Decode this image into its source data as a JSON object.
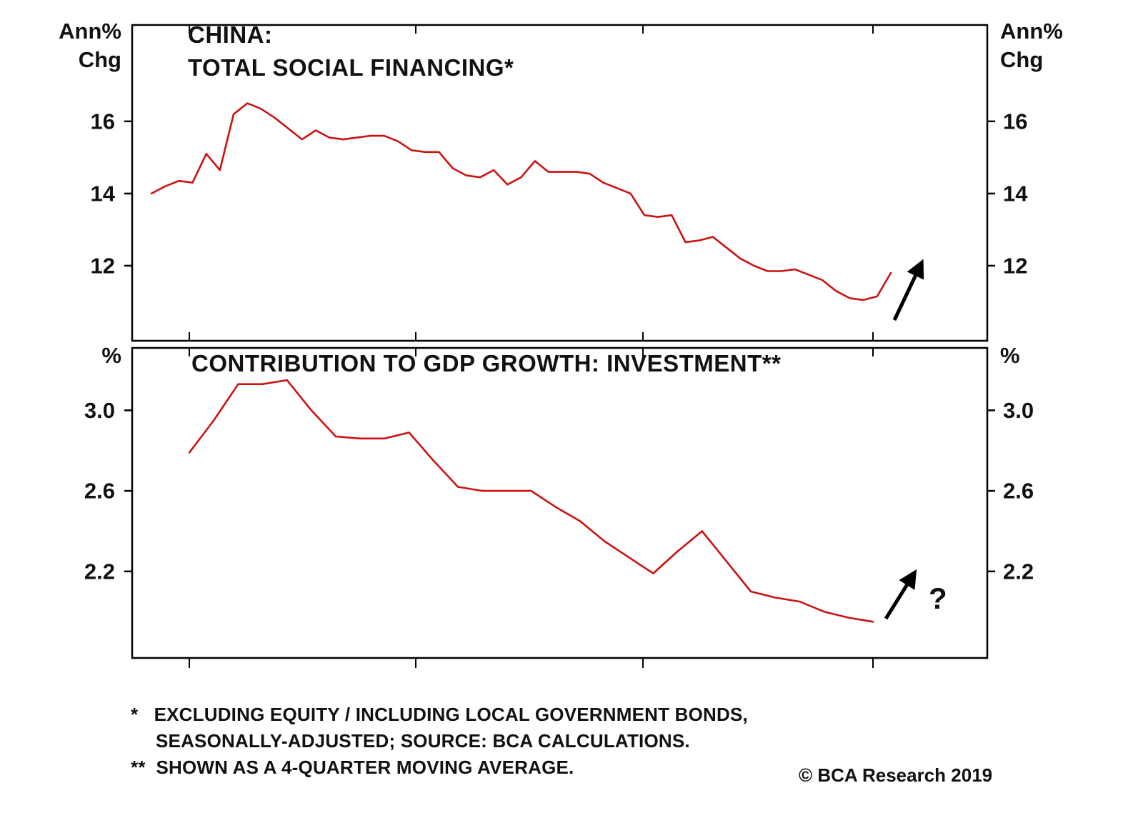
{
  "figure": {
    "copyright": "© BCA Research 2019",
    "footnote_line1": "*   EXCLUDING EQUITY / INCLUDING LOCAL GOVERNMENT BONDS,",
    "footnote_line2": "SEASONALLY-ADJUSTED; SOURCE: BCA CALCULATIONS.",
    "footnote_line3": "**  SHOWN AS A 4-QUARTER MOVING AVERAGE."
  },
  "chart_data": [
    {
      "type": "line",
      "title_line1": "CHINA:",
      "title_line2": "TOTAL SOCIAL FINANCING*",
      "unit_left": [
        "Ann%",
        "Chg"
      ],
      "unit_right": [
        "Ann%",
        "Chg"
      ],
      "ylabel": "Ann% Chg",
      "ylim": [
        9.92,
        18.67
      ],
      "yticks": [
        16,
        14,
        12
      ],
      "ytick_labels": [
        "16",
        "14",
        "12"
      ],
      "x_tick_count": 4,
      "x_tick_labels": [],
      "grid": false,
      "legend": "none",
      "line_color": "#cc1111",
      "values": [
        14.0,
        14.2,
        14.35,
        14.3,
        15.1,
        14.65,
        16.2,
        16.5,
        16.35,
        16.1,
        15.8,
        15.5,
        15.75,
        15.55,
        15.5,
        15.55,
        15.6,
        15.6,
        15.45,
        15.2,
        15.15,
        15.15,
        14.7,
        14.5,
        14.45,
        14.65,
        14.25,
        14.45,
        14.9,
        14.6,
        14.6,
        14.6,
        14.55,
        14.3,
        14.15,
        14.0,
        13.4,
        13.35,
        13.4,
        12.65,
        12.7,
        12.8,
        12.5,
        12.2,
        12.0,
        11.85,
        11.85,
        11.9,
        11.75,
        11.6,
        11.3,
        11.1,
        11.05,
        11.15,
        11.8
      ],
      "annotation": {
        "arrow_up": true,
        "label": ""
      }
    },
    {
      "type": "line",
      "title_line1": "CONTRIBUTION TO GDP GROWTH: INVESTMENT**",
      "title_line2": "",
      "unit_left": [
        "%"
      ],
      "unit_right": [
        "%"
      ],
      "ylabel": "%",
      "ylim": [
        1.77,
        3.31
      ],
      "yticks": [
        3.0,
        2.6,
        2.2
      ],
      "ytick_labels": [
        "3.0",
        "2.6",
        "2.2"
      ],
      "x_tick_count": 4,
      "x_tick_labels": [],
      "grid": false,
      "legend": "none",
      "line_color": "#cc1111",
      "values": [
        2.79,
        2.95,
        3.13,
        3.13,
        3.15,
        3.0,
        2.87,
        2.86,
        2.86,
        2.89,
        2.75,
        2.62,
        2.6,
        2.6,
        2.6,
        2.52,
        2.45,
        2.35,
        2.27,
        2.19,
        2.3,
        2.4,
        2.25,
        2.1,
        2.07,
        2.05,
        2.0,
        1.97,
        1.95
      ],
      "annotation": {
        "arrow_up": true,
        "label": "?"
      }
    }
  ]
}
